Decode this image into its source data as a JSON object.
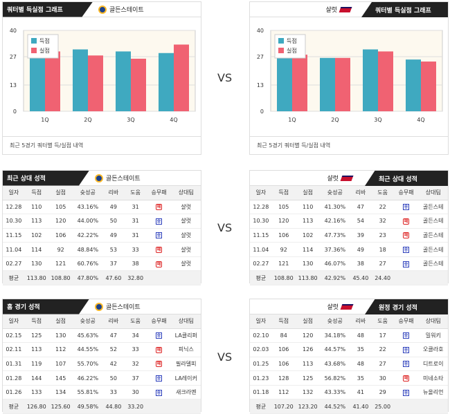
{
  "top_left": {
    "title": "쿼터별 득실점 그래프",
    "team": "골든스테이트",
    "footer": "최근 5경기 쿼터별 득/실점 내역"
  },
  "top_right": {
    "title": "쿼터별 득실점 그래프",
    "team": "샬럿",
    "footer": "최근 5경기 쿼터별 득/실점 내역"
  },
  "vs": "VS",
  "legend": {
    "score": "득점",
    "concede": "실점"
  },
  "colors": {
    "score": "#3fa9c0",
    "concede": "#f06272",
    "grid_bg": "#fdf9ef"
  },
  "chart_data": [
    {
      "type": "bar",
      "categories": [
        "1Q",
        "2Q",
        "3Q",
        "4Q"
      ],
      "ylim": [
        0,
        40
      ],
      "yticks": [
        0,
        13,
        27,
        40
      ],
      "series": [
        {
          "name": "득점",
          "values": [
            27.8,
            30.6,
            29.6,
            28.8
          ]
        },
        {
          "name": "실점",
          "values": [
            29.6,
            27.6,
            26.0,
            33.0
          ]
        }
      ]
    },
    {
      "type": "bar",
      "categories": [
        "1Q",
        "2Q",
        "3Q",
        "4Q"
      ],
      "ylim": [
        0,
        40
      ],
      "yticks": [
        0,
        13,
        27,
        40
      ],
      "series": [
        {
          "name": "득점",
          "values": [
            26.4,
            26.4,
            30.6,
            25.6
          ]
        },
        {
          "name": "실점",
          "values": [
            28.0,
            26.4,
            29.6,
            24.6
          ]
        }
      ]
    }
  ],
  "cols": [
    "일자",
    "득점",
    "실점",
    "슛성공",
    "리바",
    "도움",
    "승무패",
    "상대팀"
  ],
  "avg_label": "평균",
  "mid_left": {
    "title": "최근 상대 성적",
    "team": "골든스테이트",
    "rows": [
      [
        "12.28",
        "110",
        "105",
        "43.16%",
        "49",
        "31",
        "패",
        "샬럿"
      ],
      [
        "10.30",
        "113",
        "120",
        "44.00%",
        "50",
        "31",
        "승",
        "샬럿"
      ],
      [
        "11.15",
        "102",
        "106",
        "42.22%",
        "49",
        "31",
        "승",
        "샬럿"
      ],
      [
        "11.04",
        "114",
        "92",
        "48.84%",
        "53",
        "33",
        "패",
        "샬럿"
      ],
      [
        "02.27",
        "130",
        "121",
        "60.76%",
        "37",
        "38",
        "패",
        "샬럿"
      ]
    ],
    "avg": [
      "113.80",
      "108.80",
      "47.80%",
      "47.60",
      "32.80",
      ""
    ]
  },
  "mid_right": {
    "title": "최근 상대 성적",
    "team": "샬럿",
    "rows": [
      [
        "12.28",
        "105",
        "110",
        "41.30%",
        "47",
        "22",
        "승",
        "골든스테"
      ],
      [
        "10.30",
        "120",
        "113",
        "42.16%",
        "54",
        "32",
        "패",
        "골든스테"
      ],
      [
        "11.15",
        "106",
        "102",
        "47.73%",
        "39",
        "23",
        "패",
        "골든스테"
      ],
      [
        "11.04",
        "92",
        "114",
        "37.36%",
        "49",
        "18",
        "승",
        "골든스테"
      ],
      [
        "02.27",
        "121",
        "130",
        "46.07%",
        "38",
        "27",
        "승",
        "골든스테"
      ]
    ],
    "avg": [
      "108.80",
      "113.80",
      "42.92%",
      "45.40",
      "24.40",
      ""
    ]
  },
  "bot_left": {
    "title": "홈 경기 성적",
    "team": "골든스테이트",
    "rows": [
      [
        "02.15",
        "125",
        "130",
        "45.63%",
        "47",
        "34",
        "승",
        "LA클리퍼"
      ],
      [
        "02.11",
        "113",
        "112",
        "44.55%",
        "52",
        "33",
        "패",
        "피닉스"
      ],
      [
        "01.31",
        "119",
        "107",
        "55.70%",
        "42",
        "32",
        "패",
        "필라델피"
      ],
      [
        "01.28",
        "144",
        "145",
        "46.22%",
        "50",
        "37",
        "승",
        "LA레이커"
      ],
      [
        "01.26",
        "133",
        "134",
        "55.81%",
        "33",
        "30",
        "승",
        "새크라멘"
      ]
    ],
    "avg": [
      "126.80",
      "125.60",
      "49.58%",
      "44.80",
      "33.20",
      ""
    ]
  },
  "bot_right": {
    "title": "원정 경기 성적",
    "team": "샬럿",
    "rows": [
      [
        "02.10",
        "84",
        "120",
        "34.18%",
        "48",
        "17",
        "승",
        "밀워키"
      ],
      [
        "02.03",
        "106",
        "126",
        "44.57%",
        "35",
        "22",
        "승",
        "오클라호"
      ],
      [
        "01.25",
        "106",
        "113",
        "43.68%",
        "48",
        "27",
        "승",
        "디트로이"
      ],
      [
        "01.23",
        "128",
        "125",
        "56.82%",
        "35",
        "30",
        "패",
        "미네소타"
      ],
      [
        "01.18",
        "112",
        "132",
        "43.33%",
        "41",
        "29",
        "승",
        "뉴올리언"
      ]
    ],
    "avg": [
      "107.20",
      "123.20",
      "44.52%",
      "41.40",
      "25.00",
      ""
    ]
  }
}
